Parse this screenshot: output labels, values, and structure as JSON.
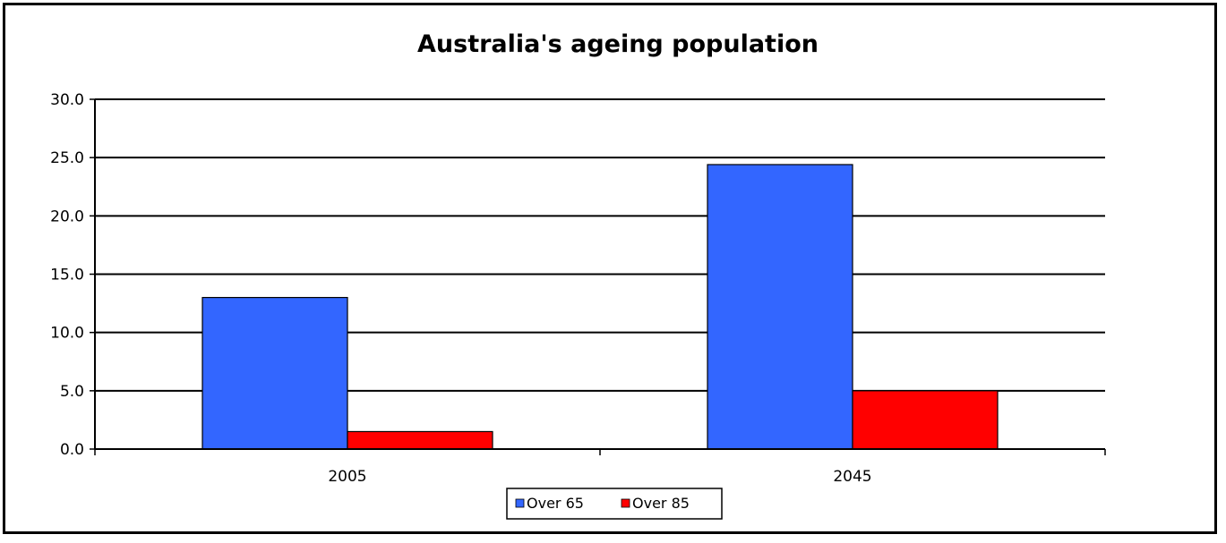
{
  "chart_data": {
    "type": "bar",
    "title": "Australia's ageing population",
    "xlabel": "",
    "ylabel": "",
    "categories": [
      "2005",
      "2045"
    ],
    "series": [
      {
        "name": "Over 65",
        "values": [
          13.0,
          24.4
        ],
        "color": "#3366ff"
      },
      {
        "name": "Over 85",
        "values": [
          1.5,
          5.0
        ],
        "color": "#ff0000"
      }
    ],
    "ylim": [
      0,
      30
    ],
    "yticks": [
      "0.0",
      "5.0",
      "10.0",
      "15.0",
      "20.0",
      "25.0",
      "30.0"
    ],
    "grid": true,
    "legend_position": "bottom"
  }
}
